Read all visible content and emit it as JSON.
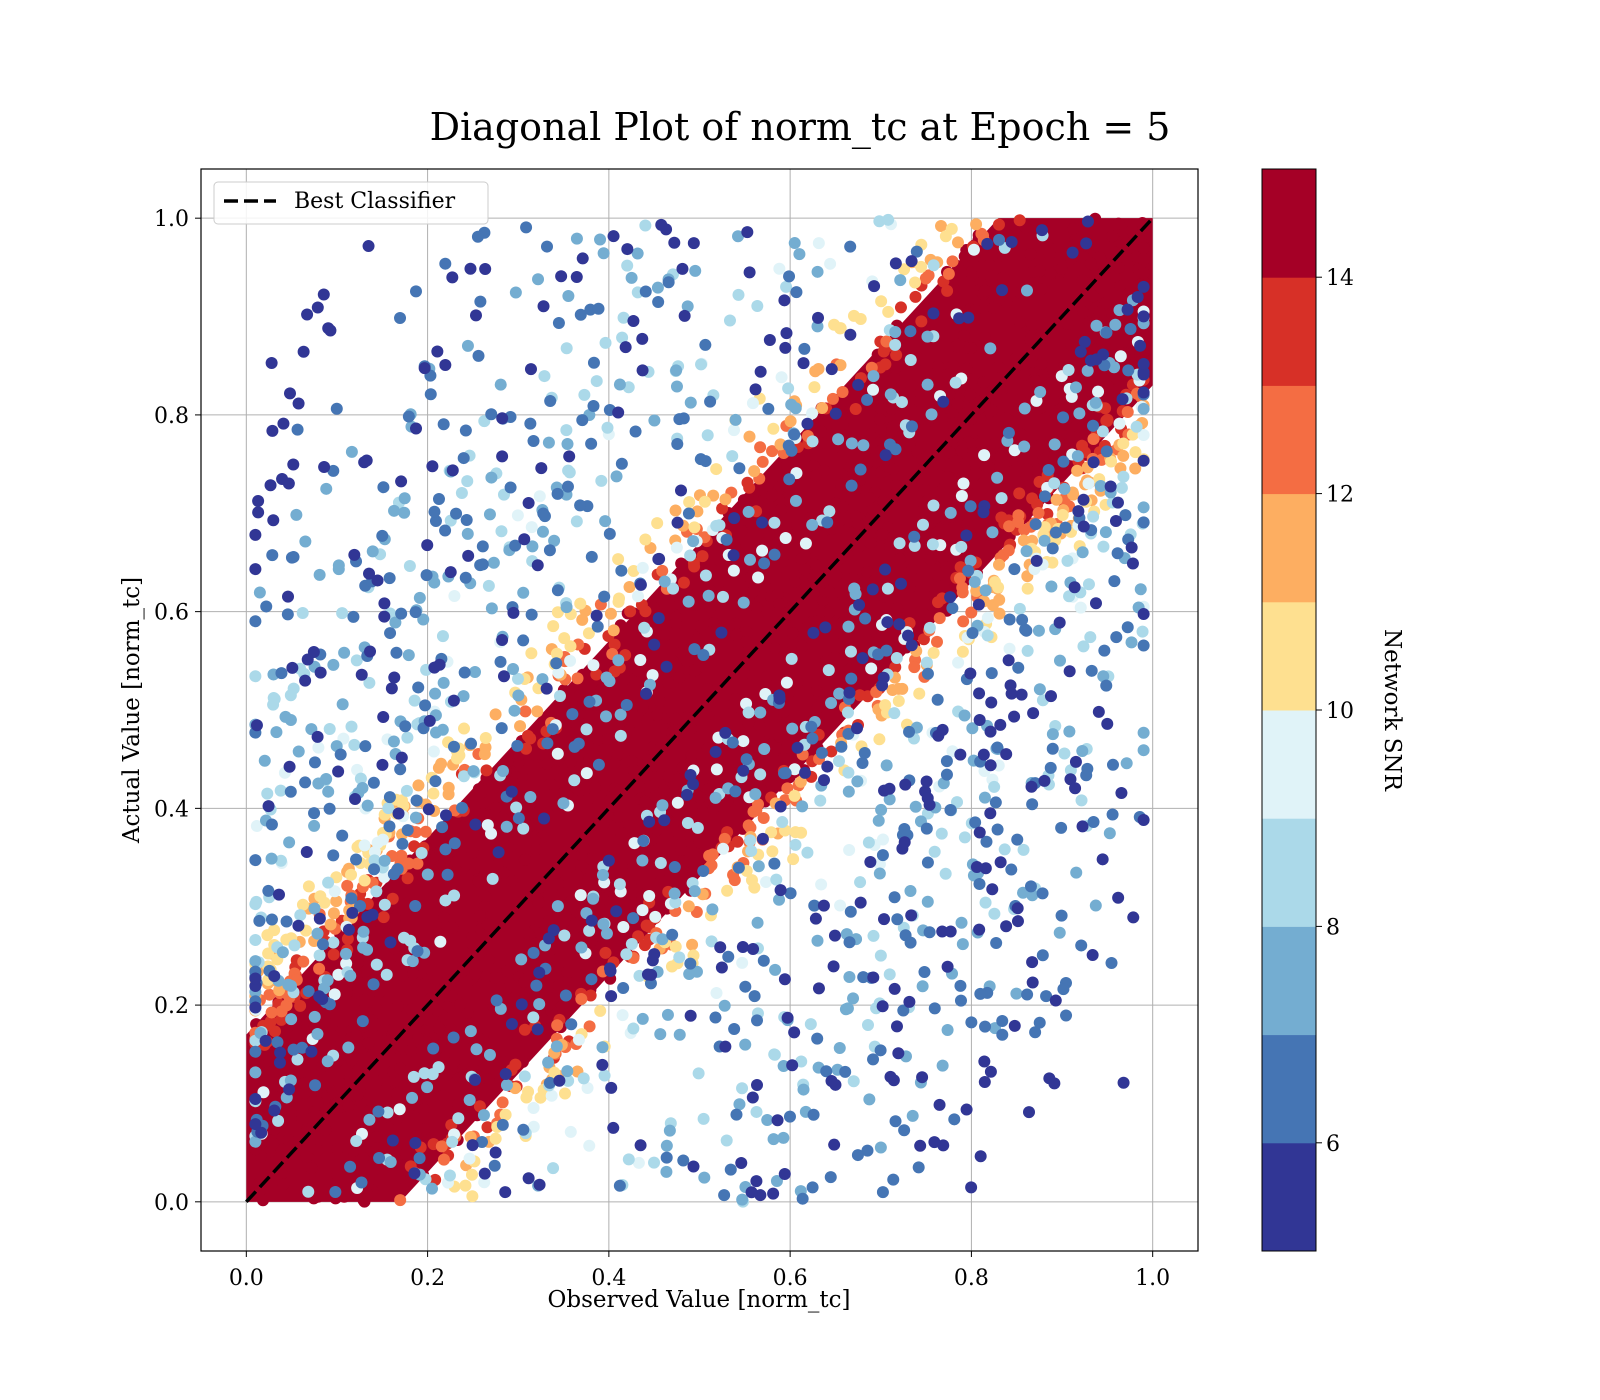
{
  "chart_data": {
    "type": "scatter",
    "title": "Diagonal Plot of norm_tc at Epoch = 5",
    "xlabel": "Observed Value [norm_tc]",
    "ylabel": "Actual Value [norm_tc]",
    "xlim": [
      -0.05,
      1.05
    ],
    "ylim": [
      -0.05,
      1.05
    ],
    "xticks": [
      "0.0",
      "0.2",
      "0.4",
      "0.6",
      "0.8",
      "1.0"
    ],
    "yticks": [
      "0.0",
      "0.2",
      "0.4",
      "0.6",
      "0.8",
      "1.0"
    ],
    "grid": true,
    "reference_line": {
      "label": "Best Classifier",
      "style": "dashed",
      "color": "#000000",
      "x": [
        0,
        1
      ],
      "y": [
        0,
        1
      ]
    },
    "legend": {
      "position": "top-left",
      "entries": [
        "Best Classifier"
      ]
    },
    "colorbar": {
      "label": "Network SNR",
      "range": [
        5,
        15
      ],
      "ticks": [
        "6",
        "8",
        "10",
        "12",
        "14"
      ],
      "colors": [
        "#313695",
        "#4575b4",
        "#74add1",
        "#abd9e9",
        "#e0f3f8",
        "#fee090",
        "#fdae61",
        "#f46d43",
        "#d73027",
        "#a50026"
      ]
    },
    "distribution": {
      "description_of_points": "high-SNR points lie along y = x; scatter around the diagonal grows as SNR decreases",
      "snr_bands": [
        {
          "snr": 14.5,
          "max_abs_error": 0.17
        },
        {
          "snr": 13.5,
          "max_abs_error": 0.19
        },
        {
          "snr": 12.5,
          "max_abs_error": 0.21
        },
        {
          "snr": 11.5,
          "max_abs_error": 0.23
        },
        {
          "snr": 10.5,
          "max_abs_error": 0.25
        },
        {
          "snr": 9.5,
          "max_abs_error": 0.4
        },
        {
          "snr": 8.5,
          "max_abs_error": 0.55
        },
        {
          "snr": 7.5,
          "max_abs_error": 0.65
        },
        {
          "snr": 6.5,
          "max_abs_error": 0.75
        },
        {
          "snr": 5.5,
          "max_abs_error": 0.85
        }
      ]
    }
  }
}
